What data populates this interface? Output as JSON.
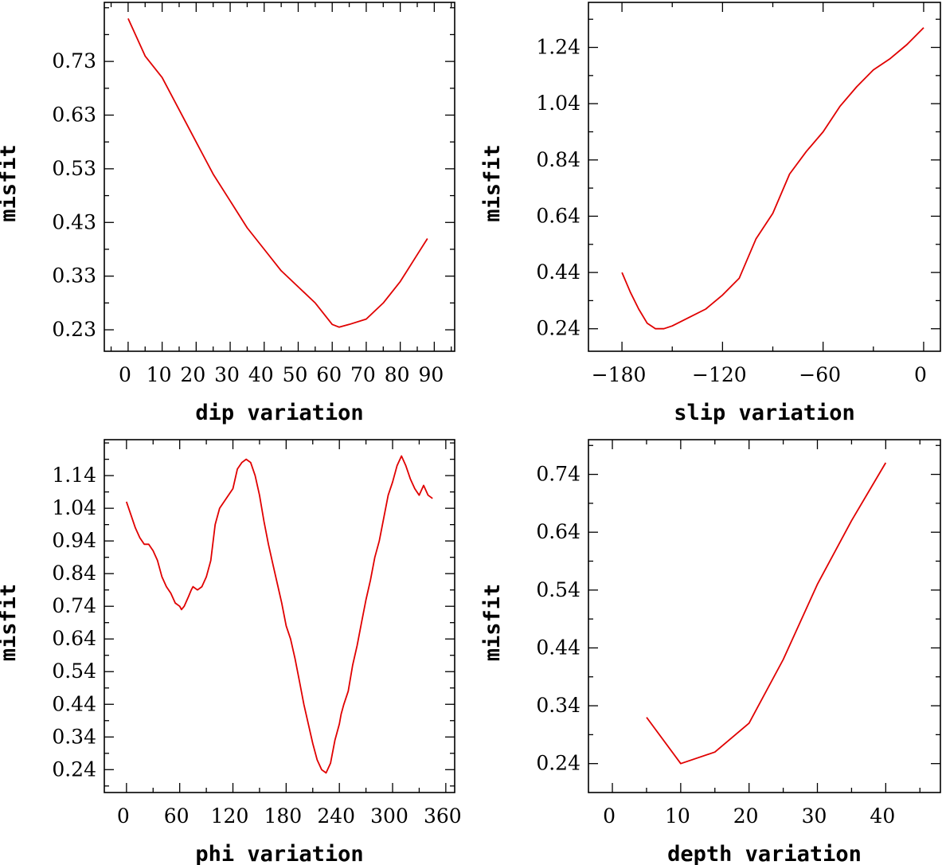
{
  "chart_data": [
    {
      "id": "dip",
      "type": "line",
      "xlabel": "dip    variation",
      "ylabel": "misfit",
      "xlim": [
        -7,
        96
      ],
      "ylim": [
        0.19,
        0.84
      ],
      "x_ticks": [
        0,
        10,
        20,
        30,
        40,
        50,
        60,
        70,
        80,
        90
      ],
      "x_tick_labels": [
        "0",
        "10",
        "20",
        "30",
        "40",
        "50",
        "60",
        "70",
        "80",
        "90"
      ],
      "y_ticks": [
        0.23,
        0.33,
        0.43,
        0.53,
        0.63,
        0.73
      ],
      "y_tick_labels": [
        "0.23",
        "0.33",
        "0.43",
        "0.53",
        "0.63",
        "0.73"
      ],
      "color": "#e00000",
      "series": [
        {
          "name": "misfit",
          "x": [
            0,
            5,
            10,
            15,
            20,
            25,
            30,
            35,
            40,
            45,
            50,
            55,
            60,
            62,
            65,
            70,
            75,
            80,
            85,
            88
          ],
          "y": [
            0.81,
            0.74,
            0.7,
            0.64,
            0.58,
            0.52,
            0.47,
            0.42,
            0.38,
            0.34,
            0.31,
            0.28,
            0.24,
            0.235,
            0.24,
            0.25,
            0.28,
            0.32,
            0.37,
            0.4
          ]
        }
      ]
    },
    {
      "id": "slip",
      "type": "line",
      "xlabel": "slip   variation",
      "ylabel": "misfit",
      "xlim": [
        -200,
        10
      ],
      "ylim": [
        0.16,
        1.4
      ],
      "x_ticks": [
        -180,
        -120,
        -60,
        0
      ],
      "x_tick_labels": [
        "−180",
        "−120",
        "−60",
        "0"
      ],
      "y_ticks": [
        0.24,
        0.44,
        0.64,
        0.84,
        1.04,
        1.24
      ],
      "y_tick_labels": [
        "0.24",
        "0.44",
        "0.64",
        "0.84",
        "1.04",
        "1.24"
      ],
      "color": "#e00000",
      "series": [
        {
          "name": "misfit",
          "x": [
            -180,
            -175,
            -170,
            -165,
            -160,
            -155,
            -150,
            -140,
            -130,
            -120,
            -110,
            -100,
            -90,
            -80,
            -70,
            -60,
            -50,
            -40,
            -30,
            -20,
            -10,
            0
          ],
          "y": [
            0.44,
            0.37,
            0.31,
            0.26,
            0.24,
            0.24,
            0.25,
            0.28,
            0.31,
            0.36,
            0.42,
            0.56,
            0.65,
            0.79,
            0.87,
            0.94,
            1.03,
            1.1,
            1.16,
            1.2,
            1.25,
            1.31
          ]
        }
      ]
    },
    {
      "id": "phi",
      "type": "line",
      "xlabel": "phi    variation",
      "ylabel": "misfit",
      "xlim": [
        -25,
        370
      ],
      "ylim": [
        0.17,
        1.25
      ],
      "x_ticks": [
        0,
        60,
        120,
        180,
        240,
        300,
        360
      ],
      "x_tick_labels": [
        "0",
        "60",
        "120",
        "180",
        "240",
        "300",
        "360"
      ],
      "y_ticks": [
        0.24,
        0.34,
        0.44,
        0.54,
        0.64,
        0.74,
        0.84,
        0.94,
        1.04,
        1.14
      ],
      "y_tick_labels": [
        "0.24",
        "0.34",
        "0.44",
        "0.54",
        "0.64",
        "0.74",
        "0.84",
        "0.94",
        "1.04",
        "1.14"
      ],
      "color": "#e00000",
      "series": [
        {
          "name": "misfit",
          "x": [
            0,
            5,
            10,
            15,
            20,
            25,
            30,
            35,
            40,
            45,
            50,
            55,
            60,
            62,
            65,
            70,
            73,
            75,
            80,
            85,
            90,
            95,
            100,
            105,
            110,
            115,
            120,
            125,
            130,
            135,
            140,
            145,
            150,
            155,
            160,
            165,
            170,
            175,
            180,
            185,
            190,
            195,
            200,
            205,
            210,
            215,
            220,
            225,
            230,
            235,
            240,
            242,
            245,
            250,
            255,
            260,
            265,
            270,
            275,
            280,
            285,
            290,
            295,
            300,
            305,
            310,
            315,
            320,
            325,
            330,
            335,
            340,
            345
          ],
          "y": [
            1.06,
            1.02,
            0.98,
            0.95,
            0.93,
            0.93,
            0.91,
            0.88,
            0.83,
            0.8,
            0.78,
            0.75,
            0.74,
            0.73,
            0.74,
            0.77,
            0.79,
            0.8,
            0.79,
            0.8,
            0.83,
            0.88,
            0.99,
            1.04,
            1.06,
            1.08,
            1.1,
            1.16,
            1.18,
            1.19,
            1.18,
            1.14,
            1.08,
            1.0,
            0.93,
            0.87,
            0.81,
            0.75,
            0.68,
            0.64,
            0.58,
            0.51,
            0.44,
            0.38,
            0.32,
            0.27,
            0.24,
            0.23,
            0.26,
            0.33,
            0.38,
            0.41,
            0.44,
            0.48,
            0.56,
            0.62,
            0.69,
            0.76,
            0.82,
            0.89,
            0.94,
            1.01,
            1.08,
            1.12,
            1.17,
            1.2,
            1.17,
            1.13,
            1.1,
            1.08,
            1.11,
            1.08,
            1.07
          ]
        }
      ]
    },
    {
      "id": "depth",
      "type": "line",
      "xlabel": "depth  variation",
      "ylabel": "misfit",
      "xlim": [
        -3.5,
        48
      ],
      "ylim": [
        0.19,
        0.8
      ],
      "x_ticks": [
        0,
        10,
        20,
        30,
        40
      ],
      "x_tick_labels": [
        "0",
        "10",
        "20",
        "30",
        "40"
      ],
      "y_ticks": [
        0.24,
        0.34,
        0.44,
        0.54,
        0.64,
        0.74
      ],
      "y_tick_labels": [
        "0.24",
        "0.34",
        "0.44",
        "0.54",
        "0.64",
        "0.74"
      ],
      "color": "#e00000",
      "series": [
        {
          "name": "misfit",
          "x": [
            5,
            10,
            15,
            20,
            25,
            30,
            35,
            40
          ],
          "y": [
            0.32,
            0.24,
            0.26,
            0.31,
            0.42,
            0.55,
            0.66,
            0.76
          ]
        }
      ]
    }
  ]
}
